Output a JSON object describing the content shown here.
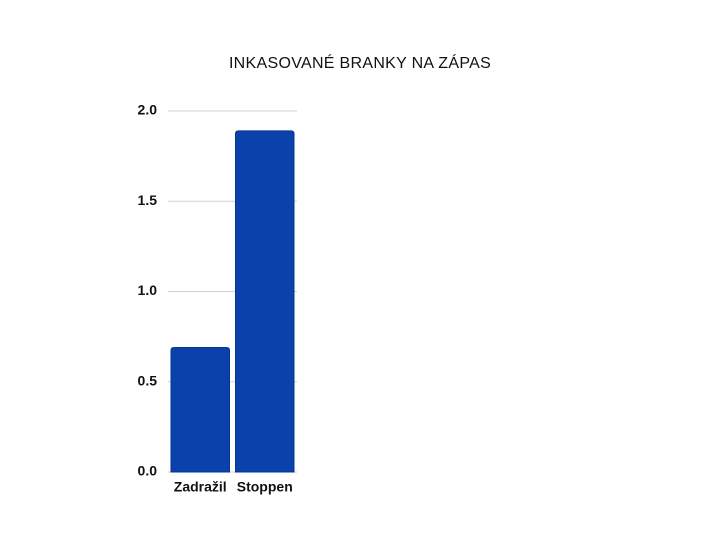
{
  "chart_data": {
    "type": "bar",
    "title": "INKASOVANÉ BRANKY NA ZÁPAS",
    "categories": [
      "Zadražil",
      "Stoppen"
    ],
    "values": [
      0.69,
      1.89
    ],
    "color": "#0b41aa",
    "ylim": [
      0,
      2
    ],
    "yticks": [
      {
        "value": 0,
        "label": "0.0"
      },
      0.5,
      {
        "value": 1,
        "label": "1.0"
      },
      1.5,
      {
        "value": 2,
        "label": "2.0"
      }
    ],
    "grid": true
  }
}
